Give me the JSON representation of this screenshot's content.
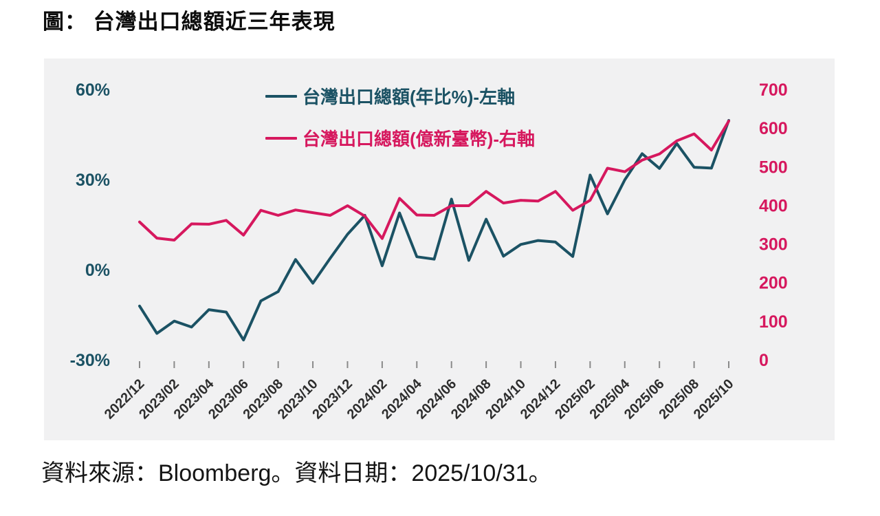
{
  "title": "圖： 台灣出口總額近三年表現",
  "source_note": "資料來源：Bloomberg。資料日期：2025/10/31。",
  "colors": {
    "left_series": "#1b5264",
    "right_series": "#d6185e",
    "panel_bg": "#f1f1f2",
    "x_tick_label": "#2d2d2d",
    "tick_mark": "#8a8a8a"
  },
  "legend": {
    "items": [
      {
        "label": "台灣出口總額(年比%)-左軸",
        "series": 0
      },
      {
        "label": "台灣出口總額(億新臺幣)-右軸",
        "series": 1
      }
    ]
  },
  "chart_data": {
    "type": "line",
    "title": "台灣出口總額近三年表現",
    "grid": false,
    "legend_position": "top-center",
    "x": [
      "2022/12",
      "2023/01",
      "2023/02",
      "2023/03",
      "2023/04",
      "2023/05",
      "2023/06",
      "2023/07",
      "2023/08",
      "2023/09",
      "2023/10",
      "2023/11",
      "2023/12",
      "2024/01",
      "2024/02",
      "2024/03",
      "2024/04",
      "2024/05",
      "2024/06",
      "2024/07",
      "2024/08",
      "2024/09",
      "2024/10",
      "2024/11",
      "2024/12",
      "2025/01",
      "2025/02",
      "2025/03",
      "2025/04",
      "2025/05",
      "2025/06",
      "2025/07",
      "2025/08",
      "2025/09",
      "2025/10"
    ],
    "x_tick_labels": [
      "2022/12",
      "2023/02",
      "2023/04",
      "2023/06",
      "2023/08",
      "2023/10",
      "2023/12",
      "2024/02",
      "2024/04",
      "2024/06",
      "2024/08",
      "2024/10",
      "2024/12",
      "2025/02",
      "2025/04",
      "2025/06",
      "2025/08",
      "2025/10"
    ],
    "left_axis": {
      "label": "年比%",
      "ticks": [
        "60%",
        "30%",
        "0%",
        "-30%"
      ],
      "tick_values": [
        60,
        30,
        0,
        -30
      ],
      "min": -30,
      "max": 60
    },
    "right_axis": {
      "label": "億新臺幣",
      "ticks": [
        "700",
        "600",
        "500",
        "400",
        "300",
        "200",
        "100",
        "0"
      ],
      "tick_values": [
        700,
        600,
        500,
        400,
        300,
        200,
        100,
        0
      ],
      "min": 0,
      "max": 700
    },
    "series": [
      {
        "name": "台灣出口總額(年比%)-左軸",
        "axis": "left",
        "color": "#1b5264",
        "values": [
          -12.1,
          -21.2,
          -17.1,
          -19.1,
          -13.3,
          -14.1,
          -23.4,
          -10.4,
          -7.3,
          3.4,
          -4.5,
          3.8,
          11.8,
          18.1,
          1.3,
          18.9,
          4.3,
          3.5,
          23.5,
          3.1,
          16.8,
          4.5,
          8.4,
          9.7,
          9.2,
          4.4,
          31.5,
          18.6,
          29.9,
          38.6,
          33.7,
          42.0,
          34.1,
          33.8,
          49.7
        ]
      },
      {
        "name": "台灣出口總額(億新臺幣)-右軸",
        "axis": "right",
        "color": "#d6185e",
        "values": [
          357,
          315,
          310,
          352,
          351,
          361,
          323,
          387,
          374,
          388,
          381,
          374,
          399,
          372,
          314,
          418,
          375,
          374,
          399,
          399,
          436,
          406,
          413,
          411,
          436,
          387,
          413,
          496,
          487,
          517,
          533,
          567,
          585,
          543,
          618
        ]
      }
    ]
  }
}
